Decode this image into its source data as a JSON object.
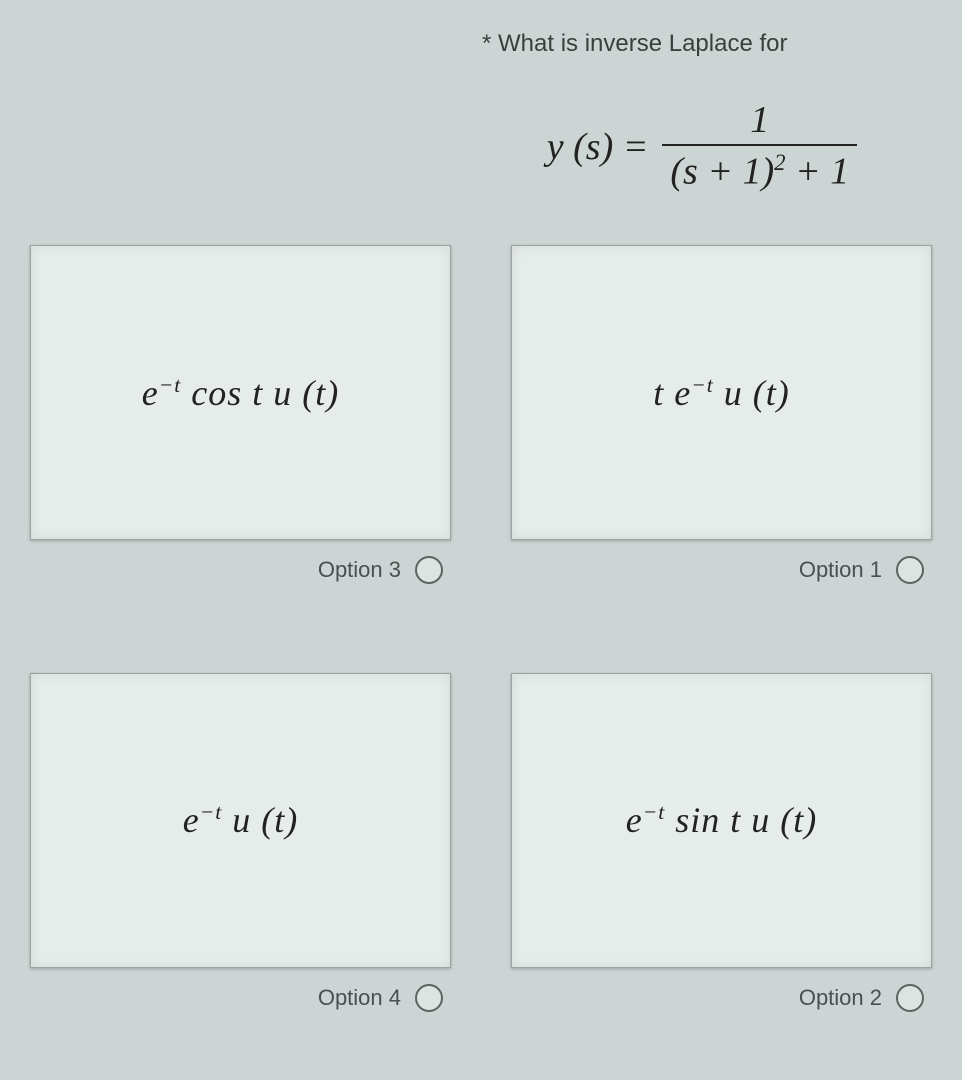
{
  "question": {
    "required_marker": "*",
    "prompt": "What is inverse Laplace for",
    "formula": {
      "lhs": "y (s) =",
      "numerator": "1",
      "denominator_before_exp": "(s + 1)",
      "denominator_exponent": "2",
      "denominator_after_exp": " + 1"
    }
  },
  "options": [
    {
      "position": "top-left",
      "label": "Option 3",
      "expr": {
        "pre": "e",
        "sup": "−t",
        "post": " cos t u (t)"
      }
    },
    {
      "position": "top-right",
      "label": "Option 1",
      "expr": {
        "pre": "t e",
        "sup": "−t",
        "post": " u (t)"
      }
    },
    {
      "position": "bottom-left",
      "label": "Option 4",
      "expr": {
        "pre": "e",
        "sup": "−t",
        "post": " u (t)"
      }
    },
    {
      "position": "bottom-right",
      "label": "Option 2",
      "expr": {
        "pre": "e",
        "sup": "−t",
        "post": " sin t u (t)"
      }
    }
  ],
  "colors": {
    "background": "#cdd5d4",
    "card_background": "#e6ecea",
    "card_border": "#9aa4a2",
    "text": "#222222",
    "label_text": "#4a504f",
    "radio_border": "#5b6462"
  }
}
